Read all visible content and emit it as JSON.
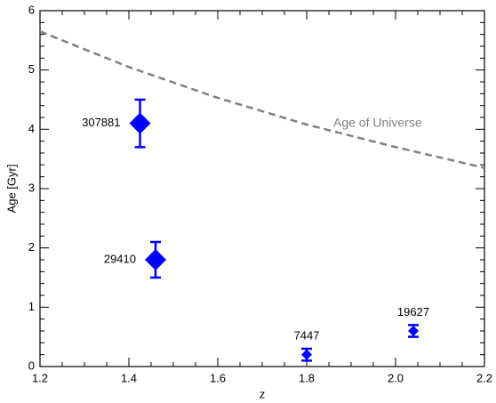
{
  "chart_data": {
    "type": "scatter",
    "xlabel": "z",
    "ylabel": "Age [Gyr]",
    "xlim": [
      1.2,
      2.2
    ],
    "ylim": [
      0,
      6
    ],
    "xticks": [
      1.2,
      1.4,
      1.6,
      1.8,
      {
        "value": 2,
        "label": "2.0"
      },
      2.2
    ],
    "yticks": [
      0,
      1,
      2,
      3,
      4,
      5,
      6
    ],
    "series": [
      {
        "color": "#0000ff",
        "labels": [
          "307881",
          "29410",
          "7447",
          "19627"
        ],
        "x": [
          1.425,
          1.46,
          1.8,
          2.04
        ],
        "values": [
          4.1,
          1.8,
          0.2,
          0.6
        ],
        "errors": [
          0.4,
          0.3,
          0.1,
          0.1
        ]
      }
    ],
    "curve": {
      "name": "Age of Universe",
      "color": "#808080",
      "x": [
        1.2,
        1.4,
        1.6,
        1.8,
        2.0,
        2.2
      ],
      "values": [
        5.65,
        5.05,
        4.53,
        4.08,
        3.7,
        3.35
      ]
    }
  }
}
